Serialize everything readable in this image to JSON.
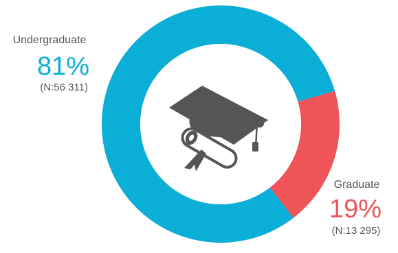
{
  "chart_data": {
    "type": "pie",
    "style": "donut",
    "center_icon": "graduation-cap-diploma-icon",
    "series": [
      {
        "name": "Undergraduate",
        "value": 81,
        "percent_label": "81%",
        "count_label": "(N:56 311)",
        "color": "#0aaed6"
      },
      {
        "name": "Graduate",
        "value": 19,
        "percent_label": "19%",
        "count_label": "(N:13 295)",
        "color": "#ee5458"
      }
    ]
  },
  "colors": {
    "icon": "#555555",
    "center": "#ffffff"
  }
}
